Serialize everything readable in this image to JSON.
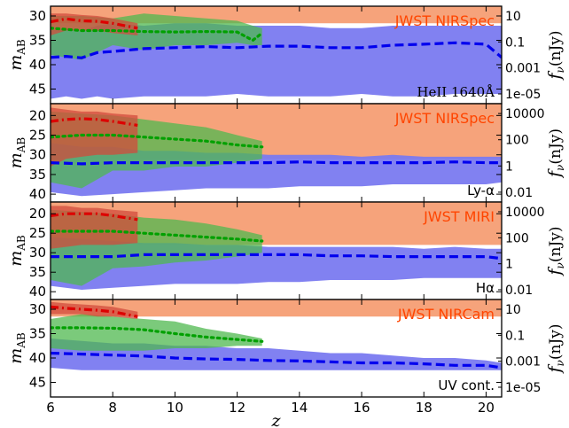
{
  "chart_data": {
    "type": "area",
    "xlabel": "z",
    "x_ticks": [
      "6",
      "8",
      "10",
      "12",
      "14",
      "16",
      "18",
      "20"
    ],
    "xlim": [
      6,
      20.5
    ],
    "left_axis_label": "m_AB",
    "right_axis_label": "f_ν (nJy)",
    "panels": [
      {
        "line_label": "HeII 1640Å",
        "instrument_label": "JWST NIRSpec",
        "ylim": [
          48,
          28
        ],
        "y_ticks": [
          30,
          35,
          40,
          45
        ],
        "right_ticks": [
          "10",
          "0.1",
          "0.001",
          "1e-05"
        ],
        "instrument_limit": 31.5,
        "series": [
          {
            "color": "#0000ee",
            "style": "dashed",
            "x": [
              6,
              6.5,
              7,
              7.5,
              8,
              9,
              10,
              11,
              12,
              13,
              14,
              15,
              16,
              17,
              18,
              19,
              20,
              20.5
            ],
            "values": [
              38.5,
              38.3,
              38.6,
              37.5,
              37.3,
              36.7,
              36.5,
              36.3,
              36.5,
              36.2,
              36.2,
              36.5,
              36.5,
              36,
              35.8,
              35.5,
              35.8,
              38.5
            ],
            "band_low": [
              47,
              46.5,
              47,
              46.5,
              47,
              46.5,
              46.5,
              46.5,
              46,
              46.5,
              46.5,
              46.5,
              46,
              46.5,
              46.5,
              46,
              46,
              46
            ],
            "band_high": [
              33,
              32.5,
              33,
              32,
              31.5,
              32,
              31.5,
              31.5,
              32,
              32,
              32,
              32.5,
              32.5,
              32,
              32,
              32,
              32,
              32
            ]
          },
          {
            "color": "#00a000",
            "style": "dotted",
            "x": [
              6,
              7,
              8,
              9,
              10,
              11,
              12,
              12.5,
              12.8
            ],
            "values": [
              32.5,
              33,
              33,
              33.2,
              33.3,
              33.2,
              33.3,
              35,
              33.5
            ],
            "band_low": [
              38,
              39,
              36,
              37,
              36,
              36,
              35.5,
              36,
              36
            ],
            "band_high": [
              30,
              30,
              30.5,
              29.5,
              30,
              30.5,
              31,
              32,
              32.5
            ]
          },
          {
            "color": "#dd0000",
            "style": "dashdot",
            "x": [
              6,
              6.5,
              7,
              7.5,
              8,
              8.8
            ],
            "values": [
              31.2,
              30.6,
              31,
              31.1,
              31.5,
              32.5
            ],
            "band_low": [
              34,
              33,
              33,
              33,
              33.5,
              34
            ],
            "band_high": [
              29.5,
              29.5,
              29.8,
              30,
              30.5,
              31.5
            ]
          }
        ]
      },
      {
        "line_label": "Ly-α",
        "instrument_label": "JWST NIRSpec",
        "ylim": [
          42,
          17
        ],
        "y_ticks": [
          20,
          25,
          30,
          35,
          40
        ],
        "right_ticks": [
          "10000",
          "100",
          "1",
          "0.01"
        ],
        "instrument_limit": 31,
        "series": [
          {
            "color": "#0000ee",
            "style": "dashed",
            "x": [
              6,
              7,
              8,
              9,
              10,
              11,
              12,
              13,
              14,
              15,
              16,
              17,
              18,
              19,
              20,
              20.5
            ],
            "values": [
              32,
              32.3,
              32,
              32,
              32,
              32,
              32,
              32,
              31.8,
              32,
              32,
              32,
              32,
              31.8,
              32,
              32
            ],
            "band_low": [
              39.5,
              40.5,
              40,
              39.5,
              39,
              38.5,
              38.5,
              38.5,
              38,
              38,
              38,
              37.5,
              37.5,
              37.5,
              37.5,
              37
            ],
            "band_high": [
              27,
              28,
              28,
              29,
              29,
              29.5,
              29.5,
              30,
              30,
              30,
              30.5,
              30,
              30.5,
              30.5,
              30.5,
              30.5
            ]
          },
          {
            "color": "#00a000",
            "style": "dotted",
            "x": [
              6,
              7,
              8,
              9,
              10,
              11,
              12,
              12.8
            ],
            "values": [
              25.5,
              25,
              25,
              25.5,
              26,
              26.5,
              27.5,
              28
            ],
            "band_low": [
              37,
              38.5,
              34,
              34,
              33,
              33,
              32,
              31
            ],
            "band_high": [
              19,
              19.5,
              20,
              21,
              22,
              23,
              25,
              26.5
            ]
          },
          {
            "color": "#dd0000",
            "style": "dashdot",
            "x": [
              6,
              6.5,
              7,
              7.5,
              8,
              8.8
            ],
            "values": [
              21.5,
              21,
              20.8,
              21,
              21.5,
              22.5
            ],
            "band_low": [
              33,
              31,
              30.5,
              30,
              30,
              29.5
            ],
            "band_high": [
              18,
              18.5,
              19,
              19,
              19.5,
              20
            ]
          }
        ]
      },
      {
        "line_label": "Hα",
        "instrument_label": "JWST MIRI",
        "ylim": [
          42,
          17
        ],
        "y_ticks": [
          20,
          25,
          30,
          35,
          40
        ],
        "right_ticks": [
          "10000",
          "100",
          "1",
          "0.01"
        ],
        "instrument_limit": 28,
        "series": [
          {
            "color": "#0000ee",
            "style": "dashed",
            "x": [
              6,
              7,
              8,
              9,
              10,
              11,
              12,
              13,
              14,
              15,
              16,
              17,
              18,
              19,
              20,
              20.5
            ],
            "values": [
              31,
              31,
              31,
              30.5,
              30.5,
              30.5,
              30.5,
              30.5,
              30.5,
              30.8,
              30.8,
              31,
              31,
              31,
              31,
              31.5
            ],
            "band_low": [
              38.5,
              39.5,
              39,
              38.5,
              38,
              38,
              38,
              37.5,
              37.5,
              37,
              37,
              37,
              36.5,
              36.5,
              36.5,
              36.5
            ],
            "band_high": [
              26,
              26.5,
              27,
              27.5,
              27.5,
              28,
              28,
              28.5,
              28.5,
              28.5,
              28.5,
              28.5,
              29,
              28.5,
              29,
              29
            ]
          },
          {
            "color": "#00a000",
            "style": "dotted",
            "x": [
              6,
              7,
              8,
              9,
              10,
              11,
              12,
              12.8
            ],
            "values": [
              24.5,
              24.5,
              24.5,
              25,
              25.5,
              26,
              26.5,
              27
            ],
            "band_low": [
              37,
              38.5,
              34,
              33.5,
              32.5,
              32,
              31,
              30
            ],
            "band_high": [
              19,
              19.5,
              20,
              21,
              21.5,
              22.5,
              24,
              25.5
            ]
          },
          {
            "color": "#dd0000",
            "style": "dashdot",
            "x": [
              6,
              6.5,
              7,
              7.5,
              8,
              8.8
            ],
            "values": [
              20.5,
              20,
              20,
              20,
              20.5,
              21.5
            ],
            "band_low": [
              29,
              28.5,
              28,
              28,
              28,
              27.5
            ],
            "band_high": [
              18,
              18,
              18.5,
              18.5,
              19,
              19.5
            ]
          }
        ]
      },
      {
        "line_label": "UV cont.",
        "instrument_label": "JWST NIRCam",
        "ylim": [
          48,
          28
        ],
        "y_ticks": [
          30,
          35,
          40,
          45
        ],
        "right_ticks": [
          "10",
          "0.1",
          "0.001",
          "1e-05"
        ],
        "instrument_limit": 31.5,
        "series": [
          {
            "color": "#0000ee",
            "style": "dashed",
            "x": [
              6,
              7,
              8,
              9,
              10,
              11,
              12,
              13,
              14,
              15,
              16,
              17,
              18,
              19,
              20,
              20.5
            ],
            "values": [
              39,
              39.2,
              39.4,
              39.6,
              40,
              40.2,
              40.3,
              40.5,
              40.6,
              40.8,
              41,
              41,
              41.2,
              41.5,
              41.5,
              42
            ],
            "band_low": [
              42,
              42.5,
              42.5,
              42.5,
              42.5,
              42.5,
              42.5,
              42.5,
              42.5,
              42.5,
              42.5,
              42.5,
              42.5,
              42.5,
              42.5,
              42.5
            ],
            "band_high": [
              36,
              36.5,
              37,
              37,
              37.5,
              37.5,
              38,
              38,
              38.5,
              39,
              39,
              39.5,
              40,
              40,
              40.5,
              41
            ]
          },
          {
            "color": "#00a000",
            "style": "dotted",
            "x": [
              6,
              7,
              8,
              9,
              10,
              11,
              12,
              12.8
            ],
            "values": [
              33.8,
              33.8,
              33.9,
              34.2,
              35,
              35.7,
              36.2,
              36.6
            ],
            "band_low": [
              38,
              38.5,
              38.5,
              38.5,
              38,
              38,
              37.5,
              37.5
            ],
            "band_high": [
              32,
              31,
              31.5,
              32,
              32.5,
              34,
              35,
              36
            ]
          },
          {
            "color": "#dd0000",
            "style": "dashdot",
            "x": [
              6,
              6.5,
              7,
              7.5,
              8,
              8.8
            ],
            "values": [
              29.5,
              29.8,
              30,
              30.2,
              30.5,
              31.5
            ],
            "band_low": [
              31,
              31,
              31,
              31.5,
              31.5,
              32
            ],
            "band_high": [
              28.5,
              28.8,
              29,
              29.2,
              29.5,
              30.5
            ]
          }
        ]
      }
    ]
  },
  "colors": {
    "instrument_band": "#f6a37b",
    "instrument_text": "#ff4500",
    "blue_band": "#7a7af0",
    "green_band": "#4fb84f",
    "red_band": "#d24b3c"
  }
}
